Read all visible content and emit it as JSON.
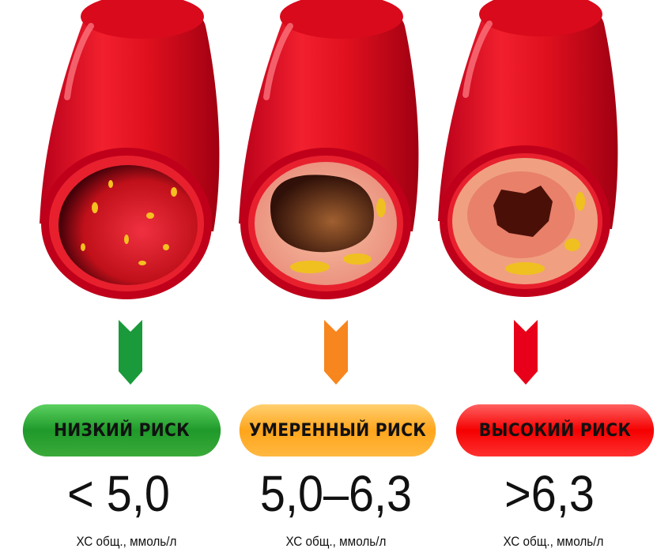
{
  "stages": [
    {
      "risk_label": "НИЗКИЙ РИСК",
      "value": "< 5,0",
      "unit": "ХС общ., ммоль/л",
      "color": "#1f9a2a"
    },
    {
      "risk_label": "УМЕРЕННЫЙ РИСК",
      "value": "5,0–6,3",
      "unit": "ХС общ., ммоль/л",
      "color": "#f7861e"
    },
    {
      "risk_label": "ВЫСОКИЙ РИСК",
      "value": ">6,3",
      "unit": "ХС общ., ммоль/л",
      "color": "#e8001a"
    }
  ]
}
